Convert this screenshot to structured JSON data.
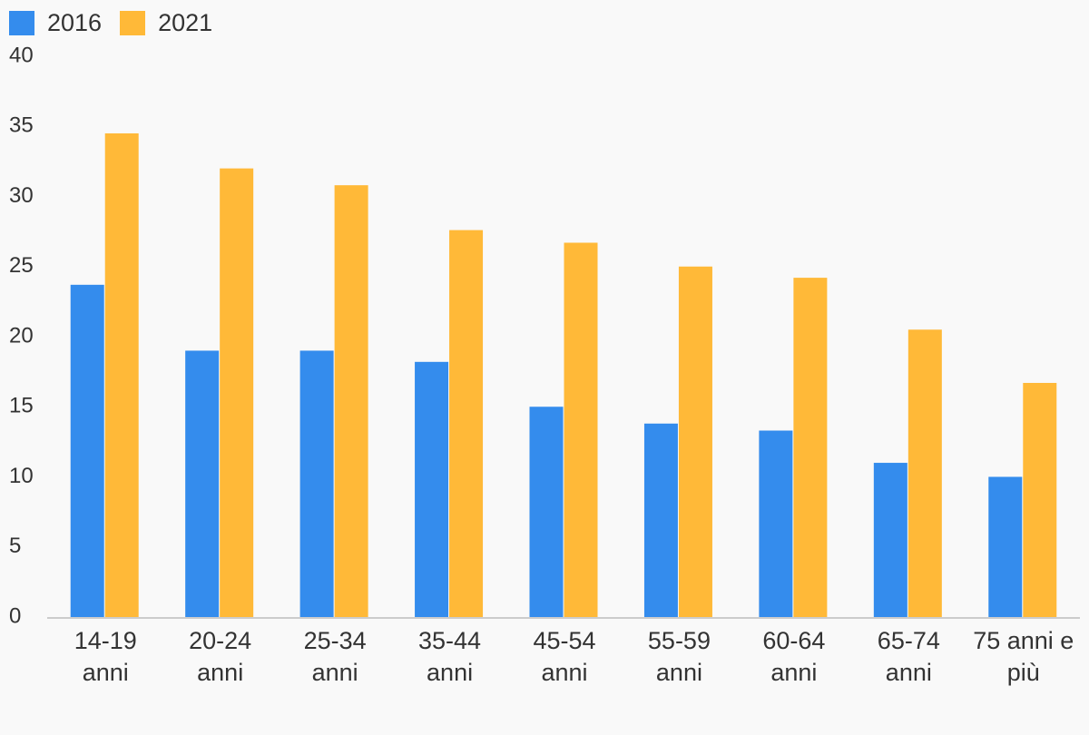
{
  "chart_data": {
    "type": "bar",
    "title": "",
    "xlabel": "",
    "ylabel": "",
    "categories": [
      [
        "14-19",
        "anni"
      ],
      [
        "20-24",
        "anni"
      ],
      [
        "25-34",
        "anni"
      ],
      [
        "35-44",
        "anni"
      ],
      [
        "45-54",
        "anni"
      ],
      [
        "55-59",
        "anni"
      ],
      [
        "60-64",
        "anni"
      ],
      [
        "65-74",
        "anni"
      ],
      [
        "75 anni e",
        "più"
      ]
    ],
    "series": [
      {
        "name": "2016",
        "color": "#348ced",
        "values": [
          23.7,
          19.0,
          19.0,
          18.2,
          15.0,
          13.8,
          13.3,
          11.0,
          10.0
        ]
      },
      {
        "name": "2021",
        "color": "#ffb938",
        "values": [
          34.5,
          32.0,
          30.8,
          27.6,
          26.7,
          25.0,
          24.2,
          20.5,
          16.7
        ]
      }
    ],
    "ylim": [
      0,
      40
    ],
    "yticks": [
      0,
      5,
      10,
      15,
      20,
      25,
      30,
      35,
      40
    ],
    "grid": false,
    "legend_position": "top-left"
  }
}
